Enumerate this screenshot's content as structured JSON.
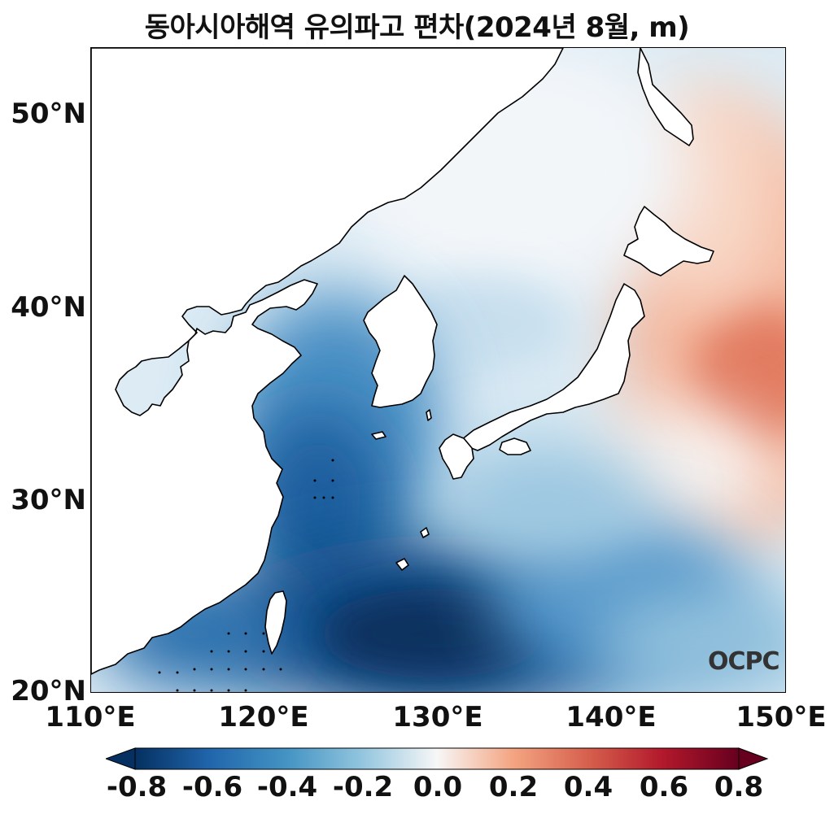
{
  "title": "동아시아해역 유의파고 편차(2024년 8월, m)",
  "lat_labels": [
    "50°N",
    "40°N",
    "30°N",
    "20°N"
  ],
  "lon_labels": [
    "110°E",
    "120°E",
    "130°E",
    "140°E",
    "150°E"
  ],
  "colorbar": {
    "ticks": [
      "-0.8",
      "-0.6",
      "-0.4",
      "-0.2",
      "0.0",
      "0.2",
      "0.4",
      "0.6",
      "0.8"
    ],
    "colormap": "RdBu_r",
    "min": -0.8,
    "max": 0.8,
    "extend": "both"
  },
  "logo_text": "OCPC",
  "colors": {
    "strong_negative": "#053061",
    "negative": "#2166ac",
    "light_negative": "#92c5de",
    "neutral": "#f7f7f7",
    "light_positive": "#f4a582",
    "positive": "#d6604d",
    "strong_positive": "#67001f"
  }
}
